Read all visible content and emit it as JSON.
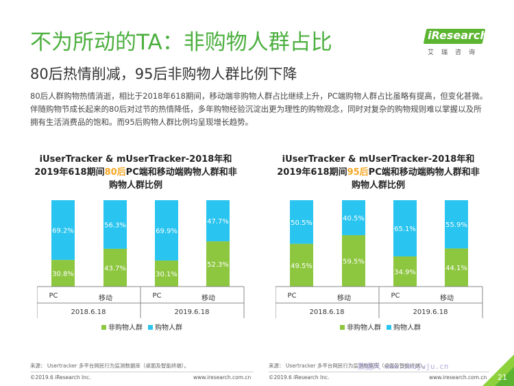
{
  "header": {
    "title": "不为所动的TA：非购物人群占比",
    "subtitle": "80后热情削减，95后非购物人群比例下降",
    "body": "80后人群购物热情消逝，相比于2018年618期间，移动端非购物人群占比继续上升，PC端购物人群占比虽略有提高，但变化甚微。伴随购物节成长起来的80后对过节的热情降低，多年购物经验沉淀出更为理性的购物观念，同时对复杂的购物规则难以掌握以及所拥有生活消费品的饱和。而95后购物人群比例均呈现增长趋势。"
  },
  "logo": {
    "main": "iResearch",
    "sub": "艾瑞咨询"
  },
  "charts": [
    {
      "title_pre": "iUserTracker & mUserTracker-2018年和2019年618期间",
      "highlight": "80后",
      "title_post": "PC端和移动端购物人群和非购物人群比例"
    },
    {
      "title_pre": "iUserTracker & mUserTracker-2018年和2019年618期间",
      "highlight": "95后",
      "title_post": "PC端和移动端购物人群和非购物人群比例"
    }
  ],
  "chart_data": [
    {
      "type": "bar",
      "stacked": true,
      "categories": [
        "PC",
        "移动",
        "PC",
        "移动"
      ],
      "groups": [
        "2018.6.18",
        "2019.6.18"
      ],
      "series": [
        {
          "name": "非购物人群",
          "color": "#8dc63f",
          "values": [
            30.8,
            43.7,
            30.1,
            52.3
          ],
          "labels": [
            "30.8%",
            "43.7%",
            "30.1%",
            "52.3%"
          ]
        },
        {
          "name": "购物人群",
          "color": "#29c4ef",
          "values": [
            69.2,
            56.3,
            69.9,
            47.7
          ],
          "labels": [
            "69.2%",
            "56.3%",
            "69.9%",
            "47.7%"
          ]
        }
      ]
    },
    {
      "type": "bar",
      "stacked": true,
      "categories": [
        "PC",
        "移动",
        "PC",
        "移动"
      ],
      "groups": [
        "2018.6.18",
        "2019.6.18"
      ],
      "series": [
        {
          "name": "非购物人群",
          "color": "#8dc63f",
          "values": [
            49.5,
            59.5,
            34.9,
            44.1
          ],
          "labels": [
            "49.5%",
            "59.5%",
            "34.9%",
            "44.1%"
          ]
        },
        {
          "name": "购物人群",
          "color": "#29c4ef",
          "values": [
            50.5,
            40.5,
            65.1,
            55.9
          ],
          "labels": [
            "50.5%",
            "40.5%",
            "65.1%",
            "55.9%"
          ]
        }
      ]
    }
  ],
  "footer": {
    "source_left": "来源： Usertracker 多平台网民行为监测数据库（桌面及智能终端）。",
    "source_right": "来源： Usertracker 多平台网民行为监测数据库（桌面及智能终端）。",
    "copyright_left": "©2019.6 iResearch Inc.",
    "url_left": "www.iresearch.com.cn",
    "copyright_right": "©2019.6 iResearch Inc.",
    "url_right": "www.iresearch.com.cn",
    "watermark": "数据风 www.shujuju.cn",
    "page_number": "21"
  }
}
